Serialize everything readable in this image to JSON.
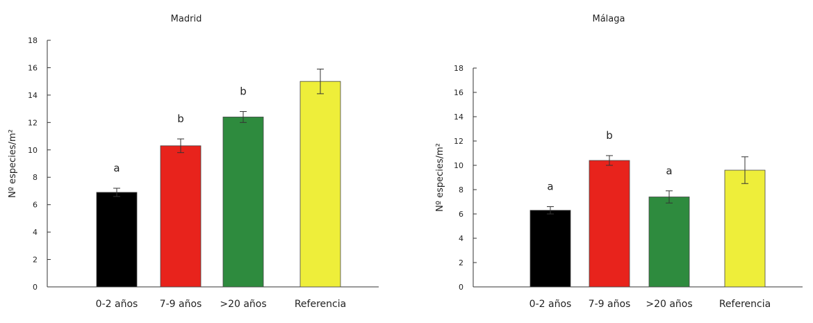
{
  "chart_data": [
    {
      "type": "bar",
      "title": "Madrid",
      "ylabel": "Nº especies/m²",
      "xlabel": "",
      "ylim": [
        0,
        18
      ],
      "yticks": [
        0,
        2,
        4,
        6,
        8,
        10,
        12,
        14,
        16,
        18
      ],
      "categories": [
        "0-2 años",
        "7-9 años",
        ">20 años",
        "Referencia"
      ],
      "values": [
        6.9,
        10.3,
        12.4,
        15.0
      ],
      "errors": [
        0.3,
        0.5,
        0.4,
        0.9
      ],
      "significance": [
        "a",
        "b",
        "b",
        ""
      ],
      "colors": [
        "#000000",
        "#e8231c",
        "#2e8b3e",
        "#eeee3a"
      ],
      "grid": false,
      "legend": "none"
    },
    {
      "type": "bar",
      "title": "Málaga",
      "ylabel": "Nº especies/m²",
      "xlabel": "",
      "ylim": [
        0,
        18
      ],
      "yticks": [
        0,
        2,
        4,
        6,
        8,
        10,
        12,
        14,
        16,
        18
      ],
      "categories": [
        "0-2 años",
        "7-9 años",
        ">20 años",
        "Referencia"
      ],
      "values": [
        6.3,
        10.4,
        7.4,
        9.6
      ],
      "errors": [
        0.3,
        0.4,
        0.5,
        1.1
      ],
      "significance": [
        "a",
        "b",
        "a",
        ""
      ],
      "colors": [
        "#000000",
        "#e8231c",
        "#2e8b3e",
        "#eeee3a"
      ],
      "grid": false,
      "legend": "none"
    }
  ]
}
